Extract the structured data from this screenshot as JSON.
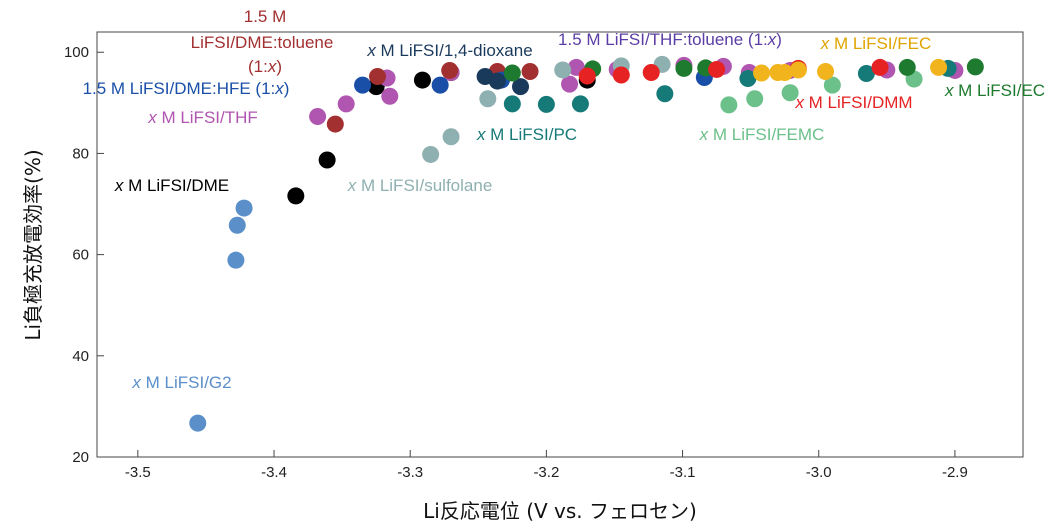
{
  "chart_data": {
    "type": "scatter",
    "xlabel": "Li反応電位 (V vs. フェロセン)",
    "ylabel": "Li負極充放電効率(%)",
    "xlim": [
      -3.53,
      -2.85
    ],
    "ylim": [
      20,
      104
    ],
    "xticks": [
      "-3.5",
      "-3.4",
      "-3.3",
      "-3.2",
      "-3.1",
      "-3.0",
      "-2.9"
    ],
    "yticks": [
      "20",
      "40",
      "60",
      "80",
      "100"
    ],
    "grid": false,
    "series": [
      {
        "name": "x M LiFSI/G2",
        "color": "#5b8fc9",
        "points": [
          [
            -3.456,
            26.7
          ],
          [
            -3.428,
            58.9
          ],
          [
            -3.427,
            65.8
          ],
          [
            -3.422,
            69.2
          ]
        ]
      },
      {
        "name": "x M LiFSI/DME",
        "color": "#000000",
        "points": [
          [
            -3.384,
            71.6
          ],
          [
            -3.361,
            78.7
          ],
          [
            -3.325,
            93.2
          ],
          [
            -3.291,
            94.5
          ],
          [
            -3.27,
            96.0
          ],
          [
            -3.17,
            94.5
          ]
        ]
      },
      {
        "name": "x M LiFSI/THF",
        "color": "#b055b0",
        "points": [
          [
            -3.368,
            87.3
          ],
          [
            -3.347,
            89.8
          ],
          [
            -3.315,
            91.3
          ],
          [
            -3.317,
            94.9
          ],
          [
            -3.27,
            96.0
          ],
          [
            -3.183,
            93.7
          ],
          [
            -3.178,
            97.0
          ],
          [
            -3.148,
            96.6
          ],
          [
            -3.099,
            97.4
          ],
          [
            -3.07,
            97.2
          ],
          [
            -3.051,
            96.0
          ],
          [
            -3.021,
            96.4
          ],
          [
            -2.95,
            96.5
          ],
          [
            -2.9,
            96.4
          ]
        ]
      },
      {
        "name": "1.5 M LiFSI/DME:toluene (1:x)",
        "color": "#a23030",
        "points": [
          [
            -3.355,
            85.8
          ],
          [
            -3.324,
            95.2
          ],
          [
            -3.271,
            96.4
          ],
          [
            -3.236,
            96.2
          ],
          [
            -3.212,
            96.2
          ]
        ]
      },
      {
        "name": "1.5 M LiFSI/DME:HFE (1:x)",
        "color": "#1a4fa8",
        "points": [
          [
            -3.335,
            93.5
          ],
          [
            -3.278,
            93.5
          ],
          [
            -3.233,
            94.5
          ],
          [
            -3.084,
            95.0
          ]
        ]
      },
      {
        "name": "x M LiFSI/1,4-dioxane",
        "color": "#1a3a5c",
        "points": [
          [
            -3.245,
            95.2
          ],
          [
            -3.236,
            94.3
          ],
          [
            -3.219,
            93.2
          ]
        ]
      },
      {
        "name": "x M LiFSI/sulfolane",
        "color": "#8fb0b0",
        "points": [
          [
            -3.285,
            79.8
          ],
          [
            -3.27,
            83.3
          ],
          [
            -3.243,
            90.8
          ],
          [
            -3.188,
            96.5
          ],
          [
            -3.145,
            97.3
          ],
          [
            -3.115,
            97.6
          ]
        ]
      },
      {
        "name": "x M LiFSI/PC",
        "color": "#157a78",
        "points": [
          [
            -3.225,
            89.8
          ],
          [
            -3.2,
            89.7
          ],
          [
            -3.175,
            89.8
          ],
          [
            -3.113,
            91.8
          ],
          [
            -3.052,
            94.8
          ],
          [
            -2.965,
            95.8
          ],
          [
            -2.905,
            96.8
          ]
        ]
      },
      {
        "name": "x M LiFSI/FEMC",
        "color": "#6cc08a",
        "points": [
          [
            -3.066,
            89.6
          ],
          [
            -3.047,
            90.8
          ],
          [
            -3.021,
            92.0
          ],
          [
            -2.99,
            93.5
          ],
          [
            -2.93,
            94.7
          ]
        ]
      },
      {
        "name": "x M LiFSI/EC",
        "color": "#1d7a2e",
        "points": [
          [
            -3.225,
            95.9
          ],
          [
            -3.166,
            96.7
          ],
          [
            -3.099,
            96.8
          ],
          [
            -3.083,
            96.9
          ],
          [
            -2.935,
            97.0
          ],
          [
            -2.885,
            97.1
          ]
        ]
      },
      {
        "name": "x M LiFSI/DMM",
        "color": "#e62222",
        "points": [
          [
            -3.17,
            95.3
          ],
          [
            -3.145,
            95.5
          ],
          [
            -3.123,
            96.0
          ],
          [
            -3.075,
            96.6
          ],
          [
            -3.015,
            96.8
          ],
          [
            -2.955,
            97.0
          ]
        ]
      },
      {
        "name": "x M LiFSI/FEC",
        "color": "#f2b41c",
        "points": [
          [
            -3.042,
            95.9
          ],
          [
            -3.03,
            96.0
          ],
          [
            -3.025,
            96.0
          ],
          [
            -3.015,
            96.5
          ],
          [
            -2.995,
            96.2
          ],
          [
            -2.912,
            97.0
          ]
        ]
      }
    ],
    "annotations": [
      {
        "parts": [
          {
            "t": "1.5 M",
            "i": false
          }
        ],
        "color": "#a23030"
      },
      {
        "parts": [
          {
            "t": "LiFSI/DME:toluene",
            "i": false
          }
        ],
        "color": "#a23030"
      },
      {
        "parts": [
          {
            "t": "(1:",
            "i": false
          },
          {
            "t": "x",
            "i": true
          },
          {
            "t": ")",
            "i": false
          }
        ],
        "color": "#a23030"
      },
      {
        "parts": [
          {
            "t": "x",
            "i": true
          },
          {
            "t": " M LiFSI/1,4-dioxane",
            "i": false
          }
        ],
        "color": "#1a3a5c"
      },
      {
        "parts": [
          {
            "t": "1.5 M LiFSI/THF:toluene (1:",
            "i": false
          },
          {
            "t": "x",
            "i": true
          },
          {
            "t": ")",
            "i": false
          }
        ],
        "color": "#5b3ea5"
      },
      {
        "parts": [
          {
            "t": "x",
            "i": true
          },
          {
            "t": " M LiFSI/FEC",
            "i": false
          }
        ],
        "color": "#e0a400"
      },
      {
        "parts": [
          {
            "t": "1.5 M LiFSI/DME:HFE (1:",
            "i": false
          },
          {
            "t": "x",
            "i": true
          },
          {
            "t": ")",
            "i": false
          }
        ],
        "color": "#1a4fa8"
      },
      {
        "parts": [
          {
            "t": "x",
            "i": true
          },
          {
            "t": " M LiFSI/EC",
            "i": false
          }
        ],
        "color": "#1d7a2e"
      },
      {
        "parts": [
          {
            "t": "x",
            "i": true
          },
          {
            "t": " M LiFSI/DMM",
            "i": false
          }
        ],
        "color": "#e62222"
      },
      {
        "parts": [
          {
            "t": "x",
            "i": true
          },
          {
            "t": " M LiFSI/THF",
            "i": false
          }
        ],
        "color": "#b055b0"
      },
      {
        "parts": [
          {
            "t": "x",
            "i": true
          },
          {
            "t": " M LiFSI/PC",
            "i": false
          }
        ],
        "color": "#157a78"
      },
      {
        "parts": [
          {
            "t": "x",
            "i": true
          },
          {
            "t": " M LiFSI/FEMC",
            "i": false
          }
        ],
        "color": "#6cc08a"
      },
      {
        "parts": [
          {
            "t": "x",
            "i": true
          },
          {
            "t": " M LiFSI/DME",
            "i": false
          }
        ],
        "color": "#000000"
      },
      {
        "parts": [
          {
            "t": "x",
            "i": true
          },
          {
            "t": " M LiFSI/sulfolane",
            "i": false
          }
        ],
        "color": "#8fb0b0"
      },
      {
        "parts": [
          {
            "t": "x",
            "i": true
          },
          {
            "t": " M LiFSI/G2",
            "i": false
          }
        ],
        "color": "#5b8fc9"
      }
    ]
  }
}
